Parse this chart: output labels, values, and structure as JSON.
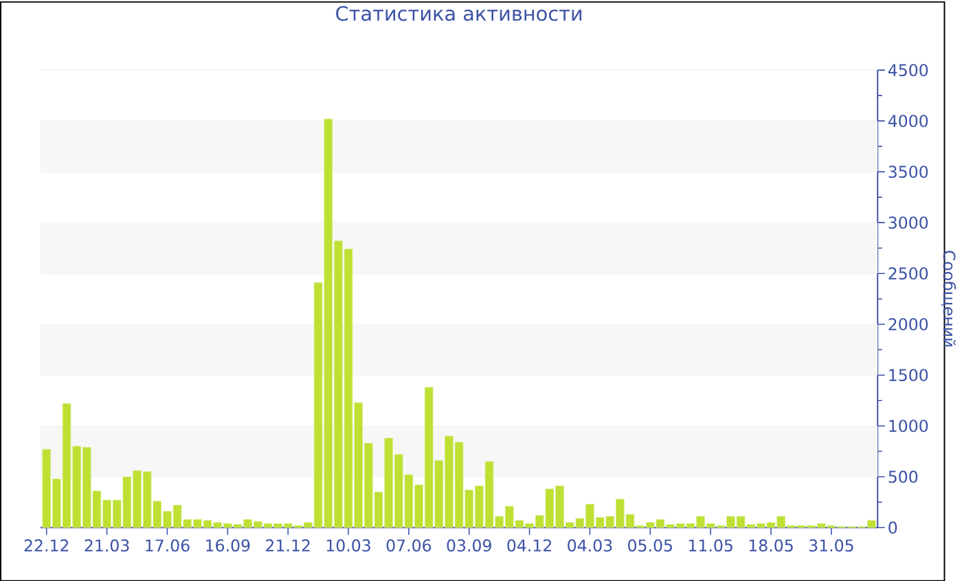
{
  "chart_data": {
    "type": "bar",
    "title": "Статистика активности",
    "ylabel": "Сообщений",
    "categories": [
      "22.12",
      null,
      null,
      null,
      null,
      null,
      "21.03",
      null,
      null,
      null,
      null,
      null,
      "17.06",
      null,
      null,
      null,
      null,
      null,
      "16.09",
      null,
      null,
      null,
      null,
      null,
      "21.12",
      null,
      null,
      null,
      null,
      null,
      "10.03",
      null,
      null,
      null,
      null,
      null,
      "07.06",
      null,
      null,
      null,
      null,
      null,
      "03.09",
      null,
      null,
      null,
      null,
      null,
      "04.12",
      null,
      null,
      null,
      null,
      null,
      "04.03",
      null,
      null,
      null,
      null,
      null,
      "05.05",
      null,
      null,
      null,
      null,
      null,
      "11.05",
      null,
      null,
      null,
      null,
      null,
      "18.05",
      null,
      null,
      null,
      null,
      null,
      "31.05",
      null,
      null,
      null,
      null
    ],
    "values": [
      770,
      480,
      1220,
      800,
      790,
      360,
      270,
      270,
      500,
      560,
      550,
      260,
      160,
      220,
      80,
      80,
      70,
      50,
      40,
      30,
      80,
      60,
      40,
      40,
      40,
      20,
      50,
      2410,
      4020,
      2820,
      2740,
      1230,
      830,
      350,
      880,
      720,
      520,
      420,
      1380,
      660,
      900,
      840,
      370,
      410,
      650,
      110,
      210,
      70,
      40,
      120,
      380,
      410,
      50,
      90,
      230,
      100,
      110,
      280,
      130,
      20,
      50,
      80,
      30,
      40,
      40,
      110,
      40,
      20,
      110,
      110,
      30,
      40,
      50,
      110,
      20,
      20,
      20,
      40,
      20,
      10,
      10,
      10,
      70
    ],
    "color": "#bde033",
    "ylim": [
      0,
      4500
    ],
    "yticks": [
      0,
      500,
      1000,
      1500,
      2000,
      2500,
      3000,
      3500,
      4000,
      4500
    ],
    "grid": "y"
  }
}
